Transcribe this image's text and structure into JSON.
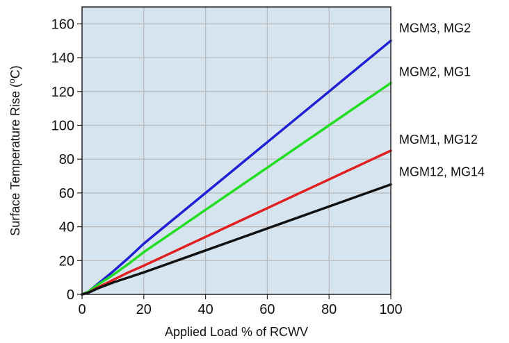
{
  "chart_data": {
    "type": "line",
    "xlabel": "Applied Load % of RCWV",
    "ylabel_main": "Surface Temperature Rise (",
    "ylabel_unit_sup": "o",
    "ylabel_unit_tail": "C)",
    "xlim": [
      0,
      100
    ],
    "ylim": [
      0,
      170
    ],
    "x_ticks": [
      0,
      20,
      40,
      60,
      80,
      100
    ],
    "y_ticks": [
      0,
      20,
      40,
      60,
      80,
      100,
      120,
      140,
      160
    ],
    "x_tick_labels": [
      "0",
      "20",
      "40",
      "60",
      "80",
      "100"
    ],
    "y_tick_labels": [
      "0",
      "20",
      "40",
      "60",
      "80",
      "100",
      "120",
      "140",
      "160"
    ],
    "grid": true,
    "plot_background": "#d6e4f0",
    "grid_color": "#b8b8b8",
    "series": [
      {
        "name": "MGM3, MG2",
        "color": "#1f1fd6",
        "x": [
          0,
          2,
          5,
          10,
          15,
          20,
          30,
          40,
          50,
          60,
          70,
          80,
          90,
          100
        ],
        "y": [
          0,
          1.5,
          6,
          13.5,
          21.5,
          30,
          45,
          60,
          75,
          90,
          105,
          120,
          135,
          150
        ]
      },
      {
        "name": "MGM2, MG1",
        "color": "#22dd22",
        "x": [
          0,
          2,
          5,
          10,
          15,
          20,
          30,
          40,
          50,
          60,
          70,
          80,
          90,
          100
        ],
        "y": [
          0,
          1.5,
          5.5,
          11.5,
          18,
          25,
          37.5,
          50,
          62.5,
          75,
          87.5,
          100,
          112.5,
          125
        ]
      },
      {
        "name": "MGM1, MG12",
        "color": "#e02020",
        "x": [
          0,
          2,
          5,
          10,
          15,
          20,
          30,
          40,
          50,
          60,
          70,
          80,
          90,
          100
        ],
        "y": [
          0,
          1,
          4,
          8.5,
          13,
          17,
          25.5,
          34,
          42.5,
          51,
          59.5,
          68,
          76.5,
          85
        ]
      },
      {
        "name": "MGM12, MG14",
        "color": "#111111",
        "x": [
          0,
          2,
          5,
          10,
          15,
          20,
          30,
          40,
          50,
          60,
          70,
          80,
          90,
          100
        ],
        "y": [
          0,
          1,
          3.5,
          7,
          10,
          13,
          19.5,
          26,
          32.5,
          39,
          45.5,
          52,
          58.5,
          65
        ]
      }
    ]
  }
}
